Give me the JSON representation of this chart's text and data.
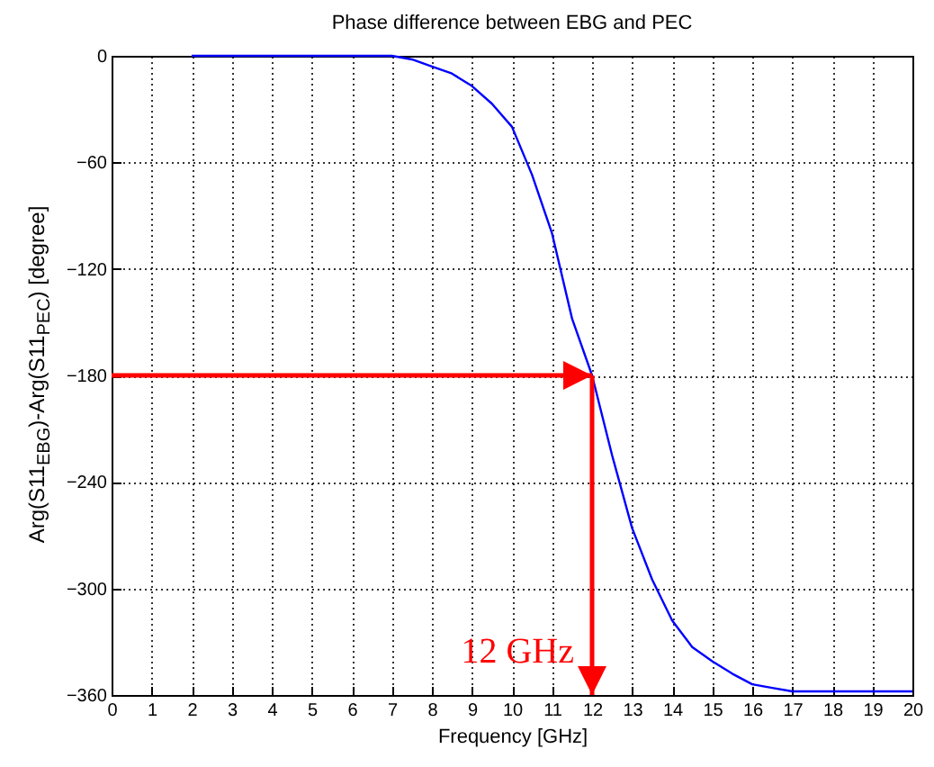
{
  "chart_data": {
    "type": "line",
    "title": "Phase difference between EBG and PEC",
    "xlabel": "Frequency [GHz]",
    "ylabel": "Arg(S11$_{EBG}$)-Arg(S11$_{PEC}$) [degree]",
    "x": [
      2,
      3,
      4,
      5,
      6,
      7,
      7.5,
      8,
      8.5,
      9,
      9.5,
      10,
      10.5,
      11,
      11.5,
      12,
      12.5,
      13,
      13.5,
      14,
      14.5,
      15,
      15.5,
      16,
      16.5,
      17,
      18,
      19,
      20
    ],
    "series": [
      {
        "color": "#0000ff",
        "values": [
          0,
          0,
          0,
          0,
          0,
          0,
          -2,
          -6,
          -10,
          -17,
          -27,
          -40,
          -67,
          -100,
          -148,
          -180,
          -225,
          -266,
          -295,
          -318,
          -333,
          -341,
          -348,
          -354,
          -356,
          -358,
          -358,
          -358,
          -358
        ]
      }
    ],
    "xlim": [
      0,
      20
    ],
    "xticks": [
      0,
      1,
      2,
      3,
      4,
      5,
      6,
      7,
      8,
      9,
      10,
      11,
      12,
      13,
      14,
      15,
      16,
      17,
      18,
      19,
      20
    ],
    "ylim": [
      -360,
      0
    ],
    "yticks": [
      -360,
      -300,
      -240,
      -180,
      -120,
      -60,
      0
    ],
    "grid": true,
    "line_style": "solid",
    "ref_lines": [
      {
        "axis": "y",
        "value": -180,
        "color": "#ff0000"
      },
      {
        "axis": "x",
        "value": 12,
        "label": "12 GHz",
        "color": "#ff0000"
      }
    ]
  }
}
